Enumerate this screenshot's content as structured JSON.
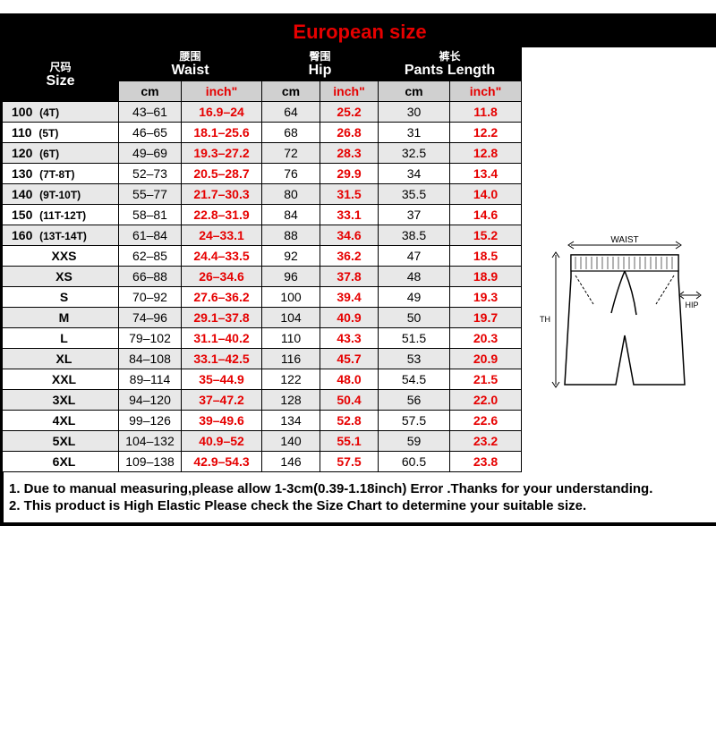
{
  "title": "European size",
  "columns": {
    "size": {
      "cn": "尺码",
      "en": "Size"
    },
    "waist": {
      "cn": "腰围",
      "en": "Waist"
    },
    "hip": {
      "cn": "臀围",
      "en": "Hip"
    },
    "pants": {
      "cn": "裤长",
      "en": "Pants Length"
    }
  },
  "subheaders": {
    "cm": "cm",
    "inch": "inch\""
  },
  "rows": [
    {
      "size": "100",
      "sub": "(4T)",
      "waist_cm": "43–61",
      "waist_in": "16.9–24",
      "hip_cm": "64",
      "hip_in": "25.2",
      "len_cm": "30",
      "len_in": "11.8"
    },
    {
      "size": "110",
      "sub": "(5T)",
      "waist_cm": "46–65",
      "waist_in": "18.1–25.6",
      "hip_cm": "68",
      "hip_in": "26.8",
      "len_cm": "31",
      "len_in": "12.2"
    },
    {
      "size": "120",
      "sub": "(6T)",
      "waist_cm": "49–69",
      "waist_in": "19.3–27.2",
      "hip_cm": "72",
      "hip_in": "28.3",
      "len_cm": "32.5",
      "len_in": "12.8"
    },
    {
      "size": "130",
      "sub": "(7T-8T)",
      "waist_cm": "52–73",
      "waist_in": "20.5–28.7",
      "hip_cm": "76",
      "hip_in": "29.9",
      "len_cm": "34",
      "len_in": "13.4"
    },
    {
      "size": "140",
      "sub": "(9T-10T)",
      "waist_cm": "55–77",
      "waist_in": "21.7–30.3",
      "hip_cm": "80",
      "hip_in": "31.5",
      "len_cm": "35.5",
      "len_in": "14.0"
    },
    {
      "size": "150",
      "sub": "(11T-12T)",
      "waist_cm": "58–81",
      "waist_in": "22.8–31.9",
      "hip_cm": "84",
      "hip_in": "33.1",
      "len_cm": "37",
      "len_in": "14.6"
    },
    {
      "size": "160",
      "sub": "(13T-14T)",
      "waist_cm": "61–84",
      "waist_in": "24–33.1",
      "hip_cm": "88",
      "hip_in": "34.6",
      "len_cm": "38.5",
      "len_in": "15.2"
    },
    {
      "size": "XXS",
      "sub": "",
      "waist_cm": "62–85",
      "waist_in": "24.4–33.5",
      "hip_cm": "92",
      "hip_in": "36.2",
      "len_cm": "47",
      "len_in": "18.5"
    },
    {
      "size": "XS",
      "sub": "",
      "waist_cm": "66–88",
      "waist_in": "26–34.6",
      "hip_cm": "96",
      "hip_in": "37.8",
      "len_cm": "48",
      "len_in": "18.9"
    },
    {
      "size": "S",
      "sub": "",
      "waist_cm": "70–92",
      "waist_in": "27.6–36.2",
      "hip_cm": "100",
      "hip_in": "39.4",
      "len_cm": "49",
      "len_in": "19.3"
    },
    {
      "size": "M",
      "sub": "",
      "waist_cm": "74–96",
      "waist_in": "29.1–37.8",
      "hip_cm": "104",
      "hip_in": "40.9",
      "len_cm": "50",
      "len_in": "19.7"
    },
    {
      "size": "L",
      "sub": "",
      "waist_cm": "79–102",
      "waist_in": "31.1–40.2",
      "hip_cm": "110",
      "hip_in": "43.3",
      "len_cm": "51.5",
      "len_in": "20.3"
    },
    {
      "size": "XL",
      "sub": "",
      "waist_cm": "84–108",
      "waist_in": "33.1–42.5",
      "hip_cm": "116",
      "hip_in": "45.7",
      "len_cm": "53",
      "len_in": "20.9"
    },
    {
      "size": "XXL",
      "sub": "",
      "waist_cm": "89–114",
      "waist_in": "35–44.9",
      "hip_cm": "122",
      "hip_in": "48.0",
      "len_cm": "54.5",
      "len_in": "21.5"
    },
    {
      "size": "3XL",
      "sub": "",
      "waist_cm": "94–120",
      "waist_in": "37–47.2",
      "hip_cm": "128",
      "hip_in": "50.4",
      "len_cm": "56",
      "len_in": "22.0"
    },
    {
      "size": "4XL",
      "sub": "",
      "waist_cm": "99–126",
      "waist_in": "39–49.6",
      "hip_cm": "134",
      "hip_in": "52.8",
      "len_cm": "57.5",
      "len_in": "22.6"
    },
    {
      "size": "5XL",
      "sub": "",
      "waist_cm": "104–132",
      "waist_in": "40.9–52",
      "hip_cm": "140",
      "hip_in": "55.1",
      "len_cm": "59",
      "len_in": "23.2"
    },
    {
      "size": "6XL",
      "sub": "",
      "waist_cm": "109–138",
      "waist_in": "42.9–54.3",
      "hip_cm": "146",
      "hip_in": "57.5",
      "len_cm": "60.5",
      "len_in": "23.8"
    }
  ],
  "illustration_labels": {
    "waist": "WAIST",
    "hip": "HIP",
    "length": "LENGTH"
  },
  "notes": {
    "line1": "1. Due to manual measuring,please allow 1-3cm(0.39-1.18inch) Error .Thanks for your understanding.",
    "line2": "2. This product is High Elastic Please check the Size Chart to determine your suitable size."
  },
  "styling": {
    "title_color": "#e60000",
    "inch_color": "#e60000",
    "header_bg": "#000000",
    "header_fg": "#ffffff",
    "row_even_bg": "#e8e8e8",
    "row_odd_bg": "#ffffff",
    "border_color": "#000000",
    "title_fontsize": 22,
    "body_fontsize": 14
  }
}
